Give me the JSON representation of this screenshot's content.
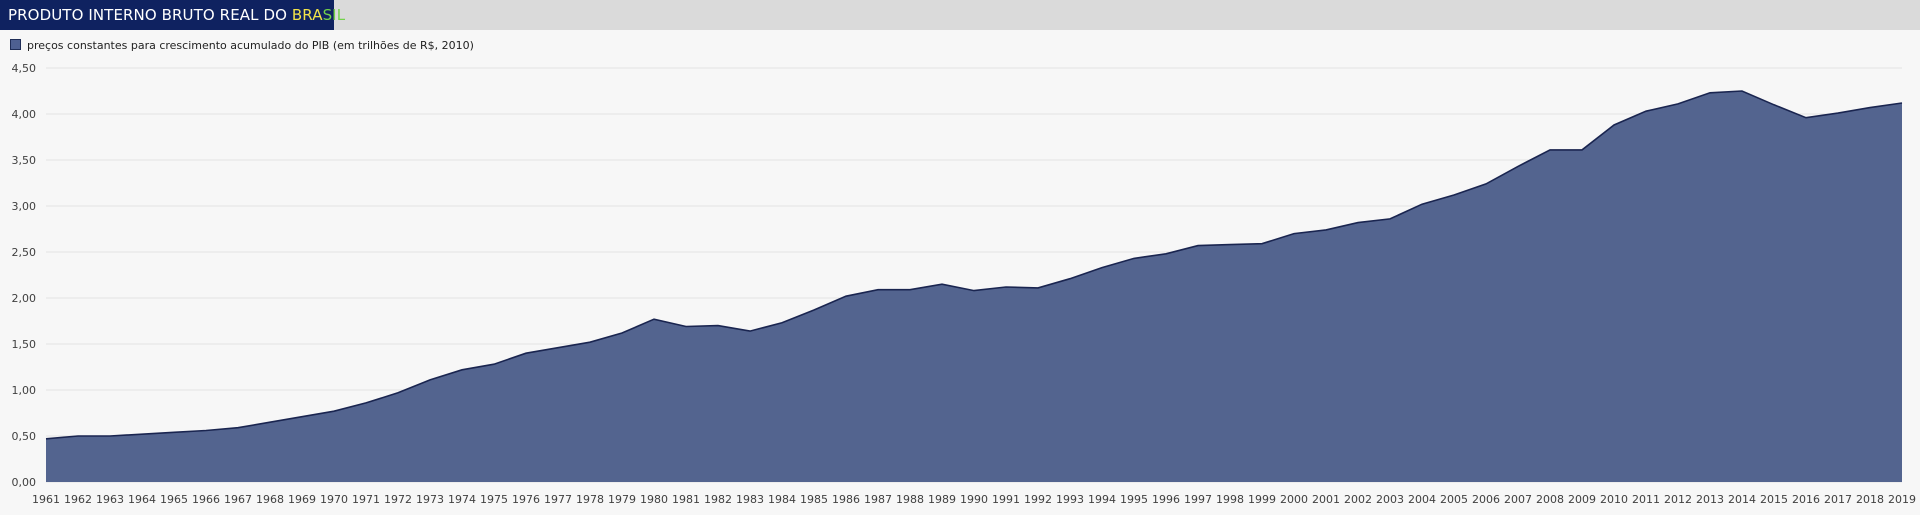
{
  "header": {
    "title_main": "PRODUTO INTERNO BRUTO REAL DO ",
    "title_bra": "BRA",
    "title_sil": "SIL"
  },
  "colors": {
    "header_bg": "#0f2260",
    "area_fill": "#53648f",
    "area_stroke": "#1a2550",
    "grid": "#e3e3e3"
  },
  "chart_data": {
    "type": "area",
    "legend": "preços constantes para crescimento acumulado do PIB (em trilhões de R$, 2010)",
    "legend_position": "top-left",
    "grid": true,
    "ylim": [
      0,
      4.5
    ],
    "y_ticks": [
      "0,00",
      "0,50",
      "1,00",
      "1,50",
      "2,00",
      "2,50",
      "3,00",
      "3,50",
      "4,00",
      "4,50"
    ],
    "x": [
      "1961",
      "1962",
      "1963",
      "1964",
      "1965",
      "1966",
      "1967",
      "1968",
      "1969",
      "1970",
      "1971",
      "1972",
      "1973",
      "1974",
      "1975",
      "1976",
      "1977",
      "1978",
      "1979",
      "1980",
      "1981",
      "1982",
      "1983",
      "1984",
      "1985",
      "1986",
      "1987",
      "1988",
      "1989",
      "1990",
      "1991",
      "1992",
      "1993",
      "1994",
      "1995",
      "1996",
      "1997",
      "1998",
      "1999",
      "2000",
      "2001",
      "2002",
      "2003",
      "2004",
      "2005",
      "2006",
      "2007",
      "2008",
      "2009",
      "2010",
      "2011",
      "2012",
      "2013",
      "2014",
      "2015",
      "2016",
      "2017",
      "2018",
      "2019"
    ],
    "series": [
      {
        "name": "preços constantes para crescimento acumulado do PIB (em trilhões de R$, 2010)",
        "values": [
          0.47,
          0.5,
          0.5,
          0.52,
          0.54,
          0.56,
          0.59,
          0.65,
          0.71,
          0.77,
          0.86,
          0.97,
          1.11,
          1.22,
          1.28,
          1.4,
          1.46,
          1.52,
          1.62,
          1.77,
          1.69,
          1.7,
          1.64,
          1.73,
          1.87,
          2.02,
          2.09,
          2.09,
          2.15,
          2.08,
          2.12,
          2.11,
          2.21,
          2.33,
          2.43,
          2.48,
          2.57,
          2.58,
          2.59,
          2.7,
          2.74,
          2.82,
          2.86,
          3.02,
          3.12,
          3.24,
          3.43,
          3.61,
          3.61,
          3.88,
          4.03,
          4.11,
          4.23,
          4.25,
          4.1,
          3.96,
          4.01,
          4.07,
          4.12
        ]
      }
    ]
  }
}
